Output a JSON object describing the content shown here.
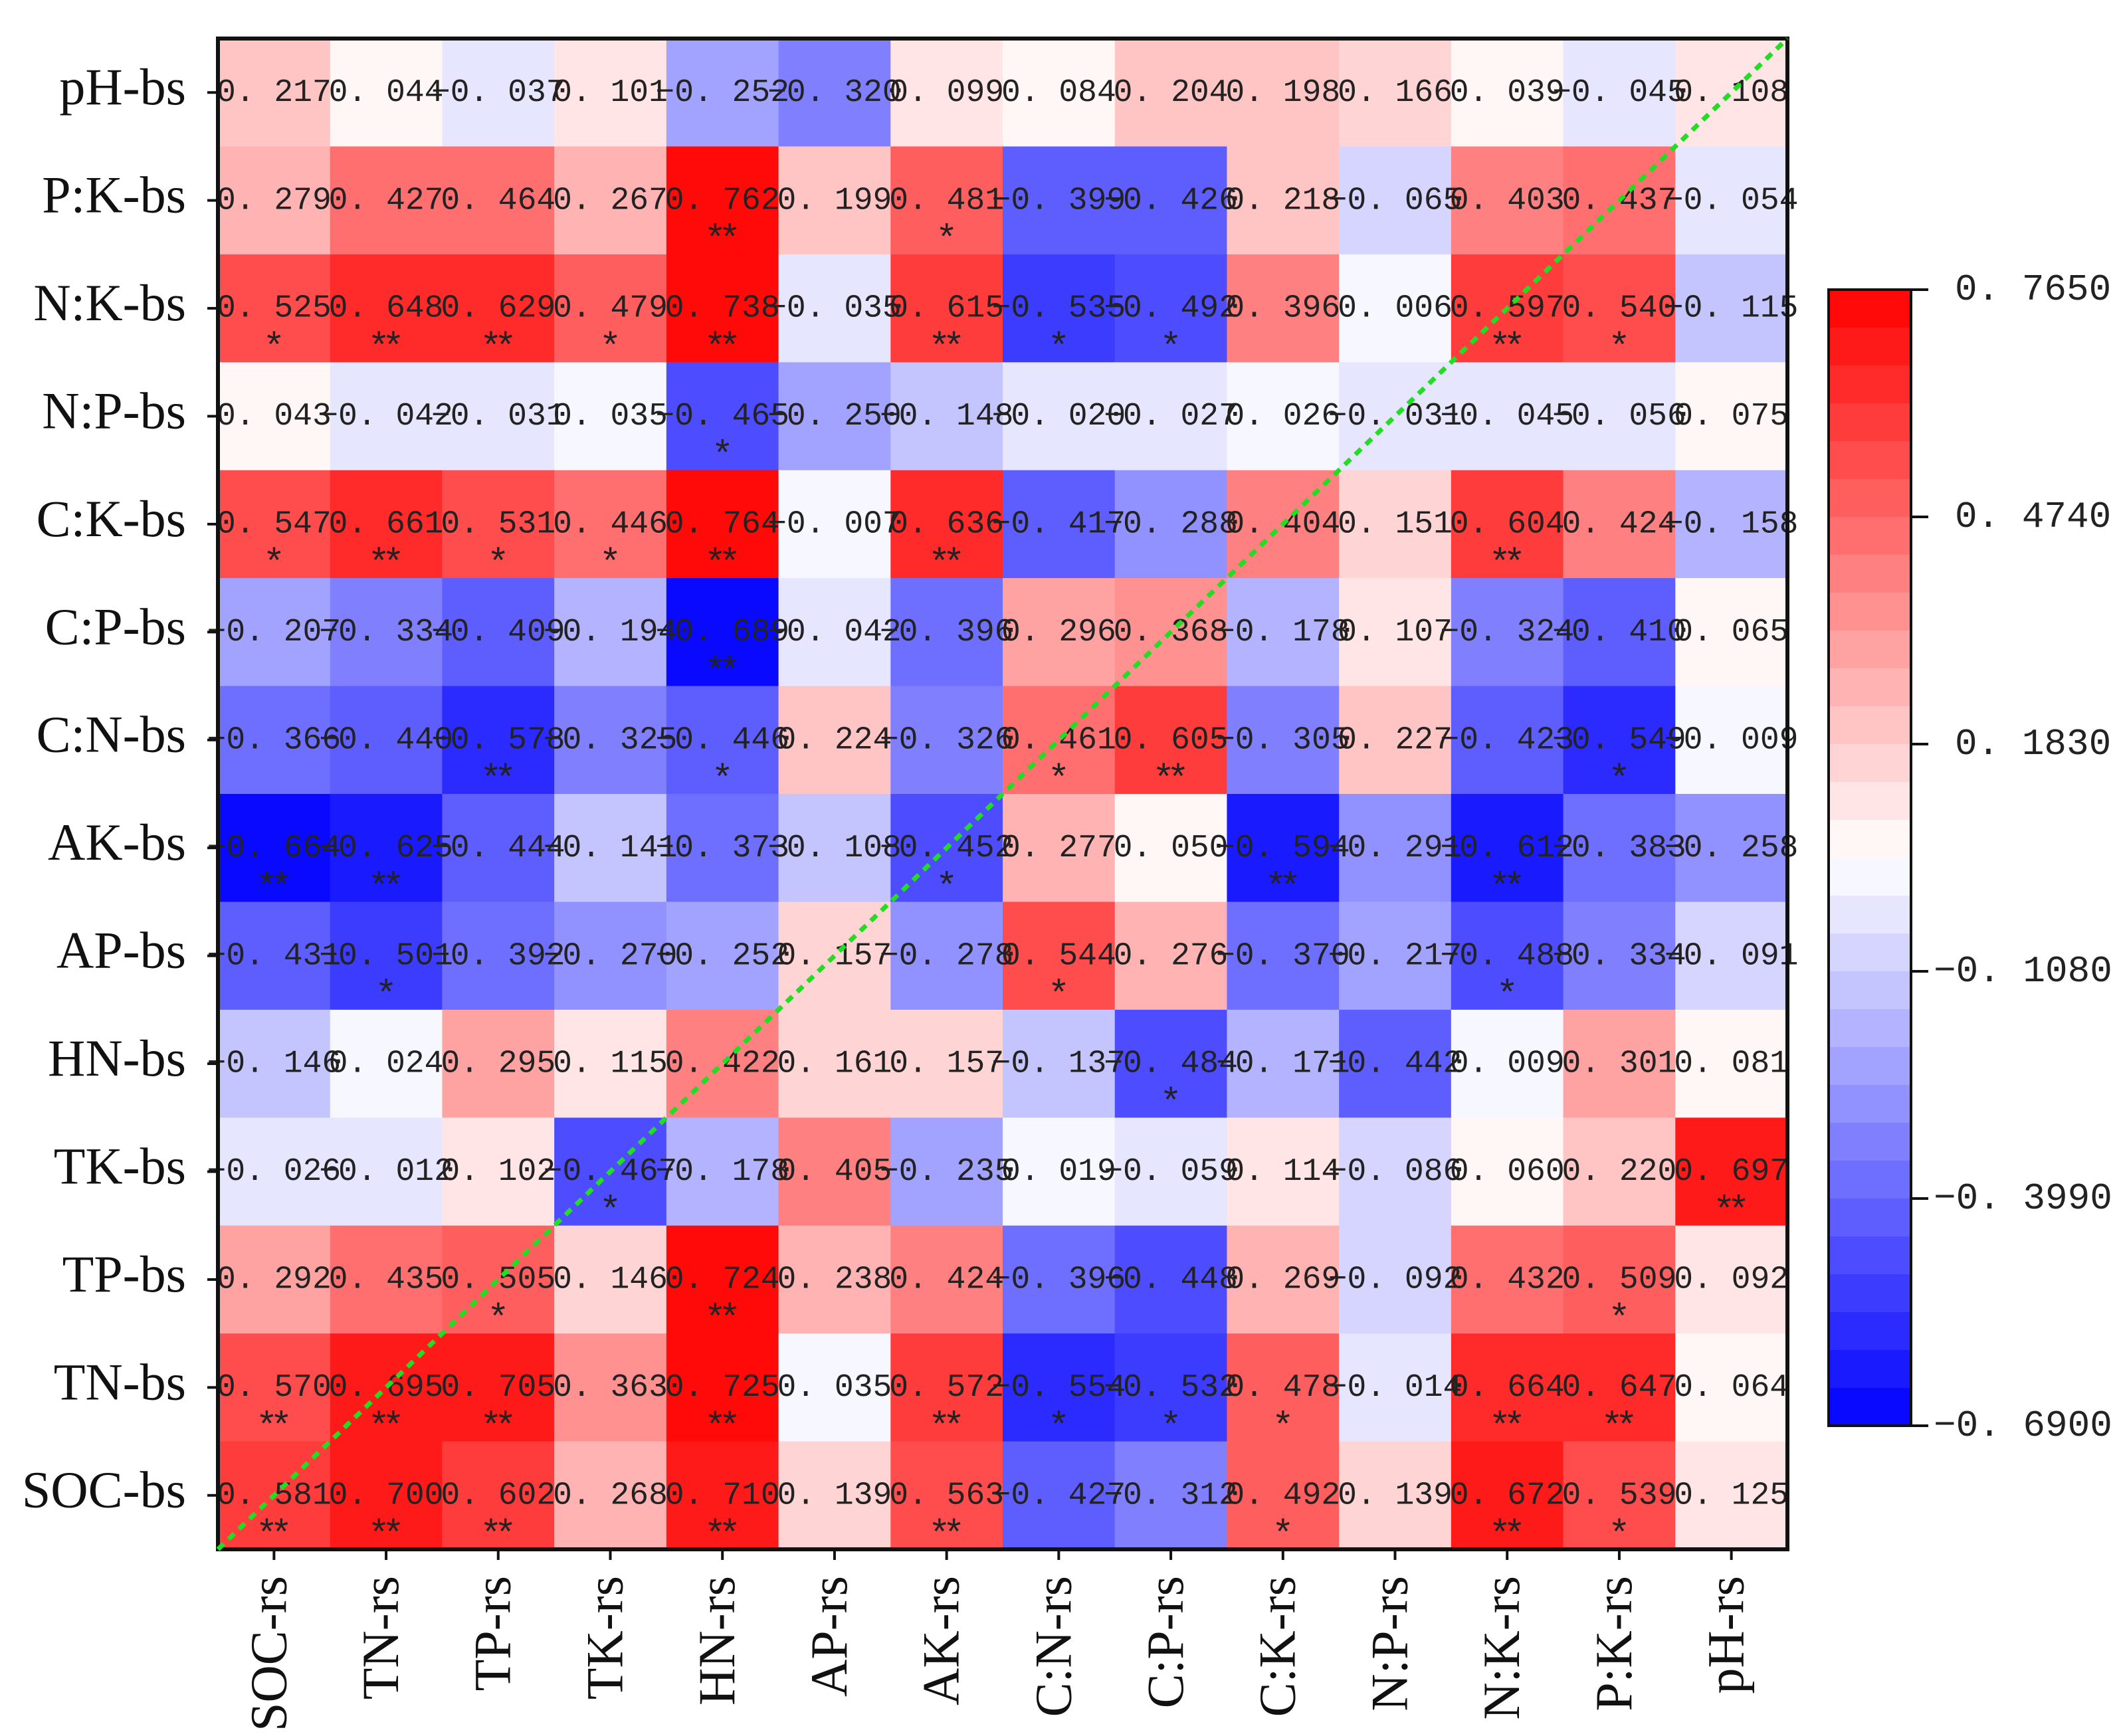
{
  "chart_data": {
    "type": "heatmap",
    "title": "",
    "rows": [
      "pH-bs",
      "P:K-bs",
      "N:K-bs",
      "N:P-bs",
      "C:K-bs",
      "C:P-bs",
      "C:N-bs",
      "AK-bs",
      "AP-bs",
      "HN-bs",
      "TK-bs",
      "TP-bs",
      "TN-bs",
      "SOC-bs"
    ],
    "columns": [
      "SOC-rs",
      "TN-rs",
      "TP-rs",
      "TK-rs",
      "HN-rs",
      "AP-rs",
      "AK-rs",
      "C:N-rs",
      "C:P-rs",
      "C:K-rs",
      "N:P-rs",
      "N:K-rs",
      "P:K-rs",
      "pH-rs"
    ],
    "values": [
      [
        0.217,
        0.044,
        -0.037,
        0.101,
        -0.252,
        -0.32,
        0.099,
        0.084,
        0.204,
        0.198,
        0.166,
        0.039,
        -0.045,
        0.108
      ],
      [
        0.279,
        0.427,
        0.464,
        0.267,
        0.762,
        0.199,
        0.481,
        -0.399,
        -0.426,
        0.218,
        -0.065,
        0.403,
        0.437,
        -0.054
      ],
      [
        0.525,
        0.648,
        0.629,
        0.479,
        0.738,
        -0.035,
        0.615,
        -0.535,
        -0.492,
        0.396,
        0.006,
        0.597,
        0.54,
        -0.115
      ],
      [
        0.043,
        -0.042,
        -0.031,
        0.035,
        -0.465,
        -0.25,
        -0.148,
        -0.02,
        -0.027,
        0.026,
        -0.031,
        -0.045,
        -0.056,
        0.075
      ],
      [
        0.547,
        0.661,
        0.531,
        0.446,
        0.764,
        -0.007,
        0.636,
        -0.417,
        -0.288,
        0.404,
        0.151,
        0.604,
        0.424,
        -0.158
      ],
      [
        -0.207,
        -0.334,
        -0.409,
        -0.194,
        -0.689,
        -0.042,
        -0.396,
        0.296,
        0.368,
        -0.178,
        0.107,
        -0.324,
        -0.41,
        0.065
      ],
      [
        -0.366,
        -0.44,
        -0.578,
        -0.325,
        -0.446,
        0.224,
        -0.326,
        0.461,
        0.605,
        -0.305,
        0.227,
        -0.423,
        -0.549,
        -0.009
      ],
      [
        -0.664,
        -0.625,
        -0.444,
        -0.141,
        -0.373,
        -0.108,
        -0.452,
        0.277,
        0.05,
        -0.594,
        -0.291,
        -0.612,
        -0.383,
        -0.258
      ],
      [
        -0.431,
        -0.501,
        -0.392,
        -0.27,
        -0.252,
        0.157,
        -0.278,
        0.544,
        0.276,
        -0.37,
        -0.217,
        -0.488,
        -0.334,
        -0.091
      ],
      [
        -0.146,
        0.024,
        0.295,
        0.115,
        0.422,
        0.161,
        0.157,
        -0.137,
        -0.484,
        -0.171,
        -0.442,
        0.009,
        0.301,
        0.081
      ],
      [
        -0.026,
        -0.012,
        0.102,
        -0.467,
        -0.178,
        0.405,
        -0.235,
        0.019,
        -0.059,
        0.114,
        -0.086,
        0.06,
        0.22,
        0.697
      ],
      [
        0.292,
        0.435,
        0.505,
        0.146,
        0.724,
        0.238,
        0.424,
        -0.396,
        -0.448,
        0.269,
        -0.092,
        0.432,
        0.509,
        0.092
      ],
      [
        0.57,
        0.695,
        0.705,
        0.363,
        0.725,
        0.035,
        0.572,
        -0.554,
        -0.532,
        0.478,
        -0.014,
        0.664,
        0.647,
        0.064
      ],
      [
        0.581,
        0.7,
        0.602,
        0.268,
        0.71,
        0.139,
        0.563,
        -0.427,
        -0.312,
        0.492,
        0.139,
        0.672,
        0.539,
        0.125
      ]
    ],
    "significance": [
      [
        "",
        "",
        "",
        "",
        "",
        "",
        "",
        "",
        "",
        "",
        "",
        "",
        "",
        ""
      ],
      [
        "",
        "",
        "",
        "",
        "**",
        "",
        "*",
        "",
        "",
        "",
        "",
        "",
        "",
        ""
      ],
      [
        "*",
        "**",
        "**",
        "*",
        "**",
        "",
        "**",
        "*",
        "*",
        "",
        "",
        "**",
        "*",
        ""
      ],
      [
        "",
        "",
        "",
        "",
        "*",
        "",
        "",
        "",
        "",
        "",
        "",
        "",
        "",
        ""
      ],
      [
        "*",
        "**",
        "*",
        "*",
        "**",
        "",
        "**",
        "",
        "",
        "",
        "",
        "**",
        "",
        ""
      ],
      [
        "",
        "",
        "",
        "",
        "**",
        "",
        "",
        "",
        "",
        "",
        "",
        "",
        "",
        ""
      ],
      [
        "",
        "",
        "**",
        "",
        "*",
        "",
        "",
        "*",
        "**",
        "",
        "",
        "",
        "*",
        ""
      ],
      [
        "**",
        "**",
        "",
        "",
        "",
        "",
        "*",
        "",
        "",
        "**",
        "",
        "**",
        "",
        ""
      ],
      [
        "",
        "*",
        "",
        "",
        "",
        "",
        "",
        "*",
        "",
        "",
        "",
        "*",
        "",
        ""
      ],
      [
        "",
        "",
        "",
        "",
        "",
        "",
        "",
        "",
        "*",
        "",
        "",
        "",
        "",
        ""
      ],
      [
        "",
        "",
        "",
        "*",
        "",
        "",
        "",
        "",
        "",
        "",
        "",
        "",
        "",
        "**"
      ],
      [
        "",
        "",
        "*",
        "",
        "**",
        "",
        "",
        "",
        "",
        "",
        "",
        "",
        "*",
        ""
      ],
      [
        "**",
        "**",
        "**",
        "",
        "**",
        "",
        "**",
        "*",
        "*",
        "*",
        "",
        "**",
        "**",
        ""
      ],
      [
        "**",
        "**",
        "**",
        "",
        "**",
        "",
        "**",
        "",
        "",
        "*",
        "",
        "**",
        "*",
        ""
      ]
    ],
    "colorbar": {
      "min": -0.69,
      "max": 0.765,
      "tick_labels": [
        "0. 7650",
        "0. 4740",
        "0. 1830",
        "−0. 1080",
        "−0. 3990",
        "−0. 6900"
      ],
      "tick_values": [
        0.765,
        0.474,
        0.183,
        -0.108,
        -0.399,
        -0.69
      ],
      "low_color": "#0000ff",
      "mid_color": "#ffffff",
      "high_color": "#ff0000",
      "steps": 30
    },
    "diagonal_line_color": "#22dd22"
  }
}
